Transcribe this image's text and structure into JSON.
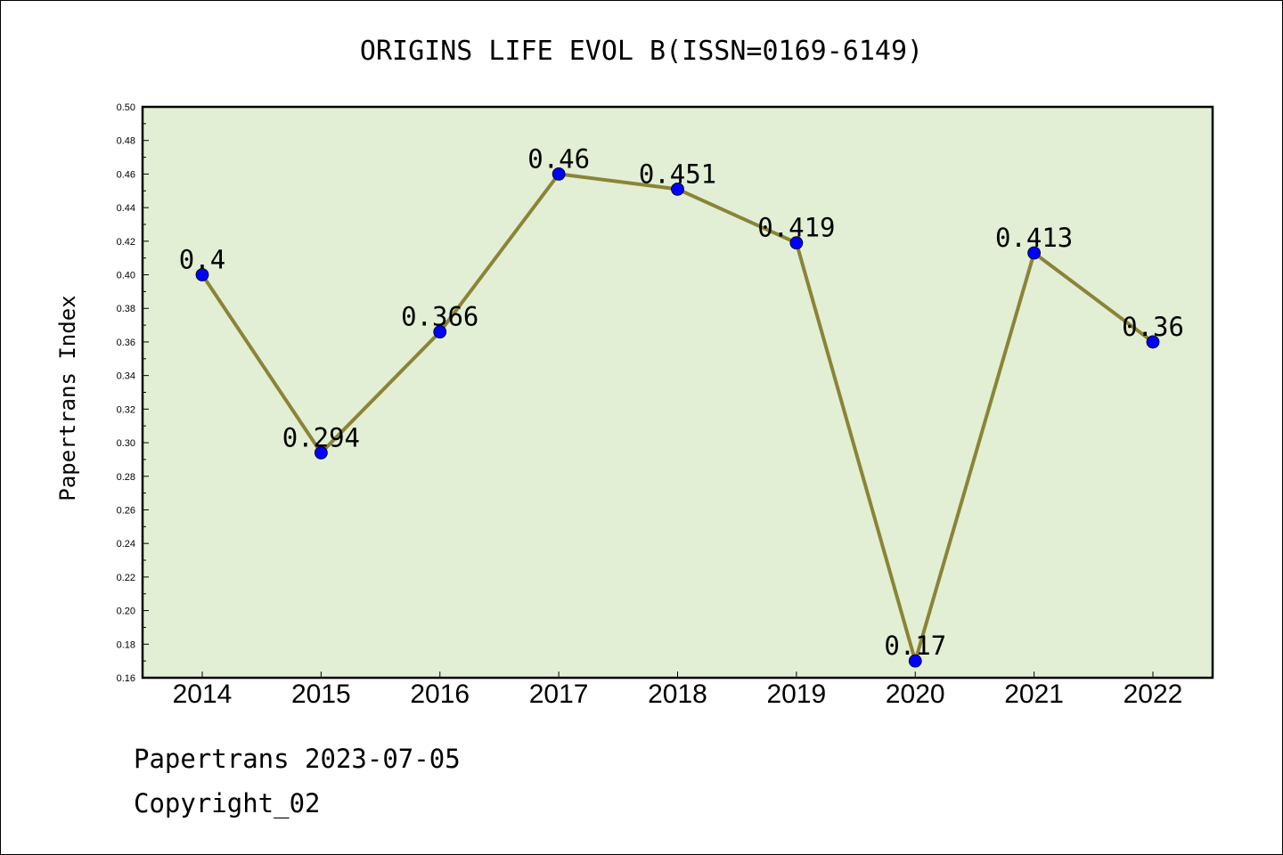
{
  "chart_data": {
    "type": "line",
    "title": "ORIGINS LIFE EVOL B(ISSN=0169-6149)",
    "ylabel": "Papertrans Index",
    "xlabel": "",
    "categories": [
      "2014",
      "2015",
      "2016",
      "2017",
      "2018",
      "2019",
      "2020",
      "2021",
      "2022"
    ],
    "values": [
      0.4,
      0.294,
      0.366,
      0.46,
      0.451,
      0.419,
      0.17,
      0.413,
      0.36
    ],
    "data_labels": [
      "0.4",
      "0.294",
      "0.366",
      "0.46",
      "0.451",
      "0.419",
      "0.17",
      "0.413",
      "0.36"
    ],
    "ylim": [
      0.16,
      0.5
    ],
    "yticks": [
      "0.16",
      "0.18",
      "0.20",
      "0.22",
      "0.24",
      "0.26",
      "0.28",
      "0.30",
      "0.32",
      "0.34",
      "0.36",
      "0.38",
      "0.40",
      "0.42",
      "0.44",
      "0.46",
      "0.48",
      "0.50"
    ],
    "grid": false,
    "colors": {
      "plot_background": "#e2efd5",
      "line": "#8b8437",
      "marker": "#0000ff"
    }
  },
  "footer": {
    "line1": "Papertrans 2023-07-05",
    "line2": "Copyright_02"
  }
}
